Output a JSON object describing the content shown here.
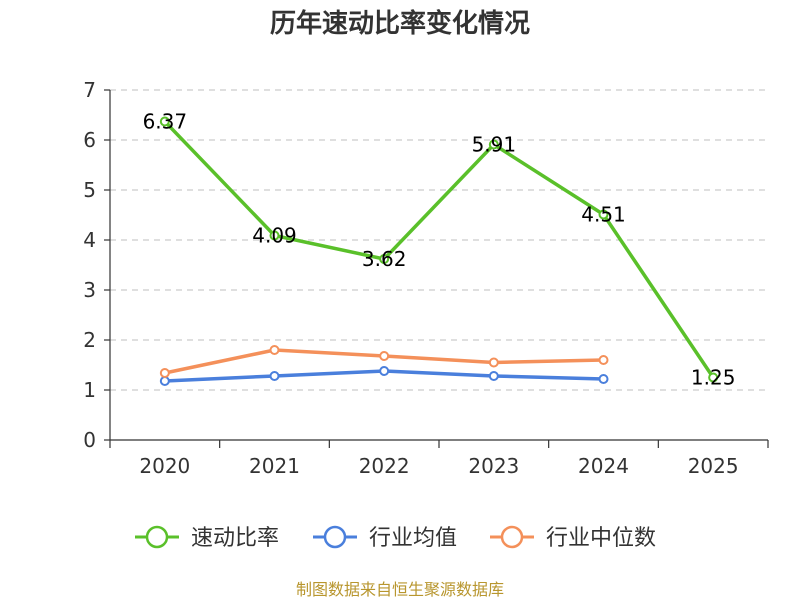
{
  "chart_data": {
    "type": "line",
    "title": "历年速动比率变化情况",
    "categories": [
      "2020",
      "2021",
      "2022",
      "2023",
      "2024",
      "2025"
    ],
    "ylim": [
      0,
      7
    ],
    "yticks": [
      0,
      1,
      2,
      3,
      4,
      5,
      6,
      7
    ],
    "grid": true,
    "legend_position": "bottom",
    "series": [
      {
        "name": "速动比率",
        "color": "#5ac02a",
        "values": [
          6.37,
          4.09,
          3.62,
          5.91,
          4.51,
          1.25
        ],
        "labels": [
          "6.37",
          "4.09",
          "3.62",
          "5.91",
          "4.51",
          "1.25"
        ]
      },
      {
        "name": "行业均值",
        "color": "#4a7fdc",
        "values": [
          1.18,
          1.28,
          1.38,
          1.28,
          1.22,
          null
        ]
      },
      {
        "name": "行业中位数",
        "color": "#f4905a",
        "values": [
          1.34,
          1.8,
          1.68,
          1.55,
          1.6,
          null
        ]
      }
    ]
  },
  "footer": "制图数据来自恒生聚源数据库"
}
